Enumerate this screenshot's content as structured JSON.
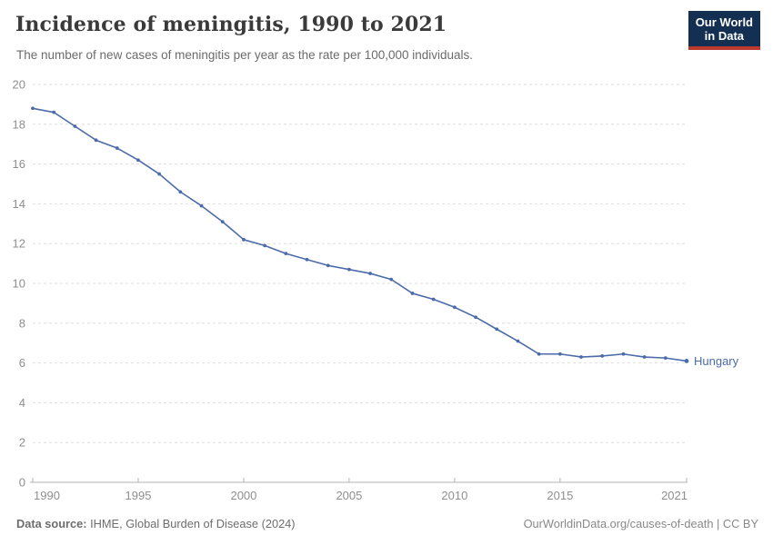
{
  "header": {
    "title": "Incidence of meningitis, 1990 to 2021",
    "subtitle": "The number of new cases of meningitis per year as the rate per 100,000 individuals.",
    "logo": {
      "line1": "Our World",
      "line2": "in Data"
    }
  },
  "chart_data": {
    "type": "line",
    "title": "Incidence of meningitis, 1990 to 2021",
    "xlabel": "",
    "ylabel": "",
    "xlim": [
      1990,
      2021
    ],
    "ylim": [
      0,
      20
    ],
    "grid": "horizontal-dashed",
    "legend_position": "end-of-line-label",
    "x_ticks": [
      1990,
      1995,
      2000,
      2005,
      2010,
      2015,
      2021
    ],
    "y_ticks": [
      0,
      2,
      4,
      6,
      8,
      10,
      12,
      14,
      16,
      18,
      20
    ],
    "series": [
      {
        "name": "Hungary",
        "color": "#4c6ba9",
        "years": [
          1990,
          1991,
          1992,
          1993,
          1994,
          1995,
          1996,
          1997,
          1998,
          1999,
          2000,
          2001,
          2002,
          2003,
          2004,
          2005,
          2006,
          2007,
          2008,
          2009,
          2010,
          2011,
          2012,
          2013,
          2014,
          2015,
          2016,
          2017,
          2018,
          2019,
          2020,
          2021
        ],
        "values": [
          18.8,
          18.6,
          17.9,
          17.2,
          16.8,
          16.2,
          15.5,
          14.6,
          13.9,
          13.1,
          12.2,
          11.9,
          11.5,
          11.2,
          10.9,
          10.7,
          10.5,
          10.2,
          9.5,
          9.2,
          8.8,
          8.3,
          7.7,
          7.1,
          6.45,
          6.45,
          6.3,
          6.35,
          6.45,
          6.3,
          6.25,
          6.1
        ]
      }
    ]
  },
  "footer": {
    "source_label": "Data source:",
    "source_text": " IHME, Global Burden of Disease (2024)",
    "credit": "OurWorldinData.org/causes-of-death | CC BY"
  },
  "colors": {
    "accent_line": "#4c6ba9",
    "grid": "#dedede",
    "axis": "#b3b3b3",
    "tick_label": "#8f8f8f",
    "title_text": "#3a3a3a",
    "subtitle_text": "#6b6b6b",
    "logo_bg": "#132f52",
    "logo_bar": "#bc392e"
  }
}
